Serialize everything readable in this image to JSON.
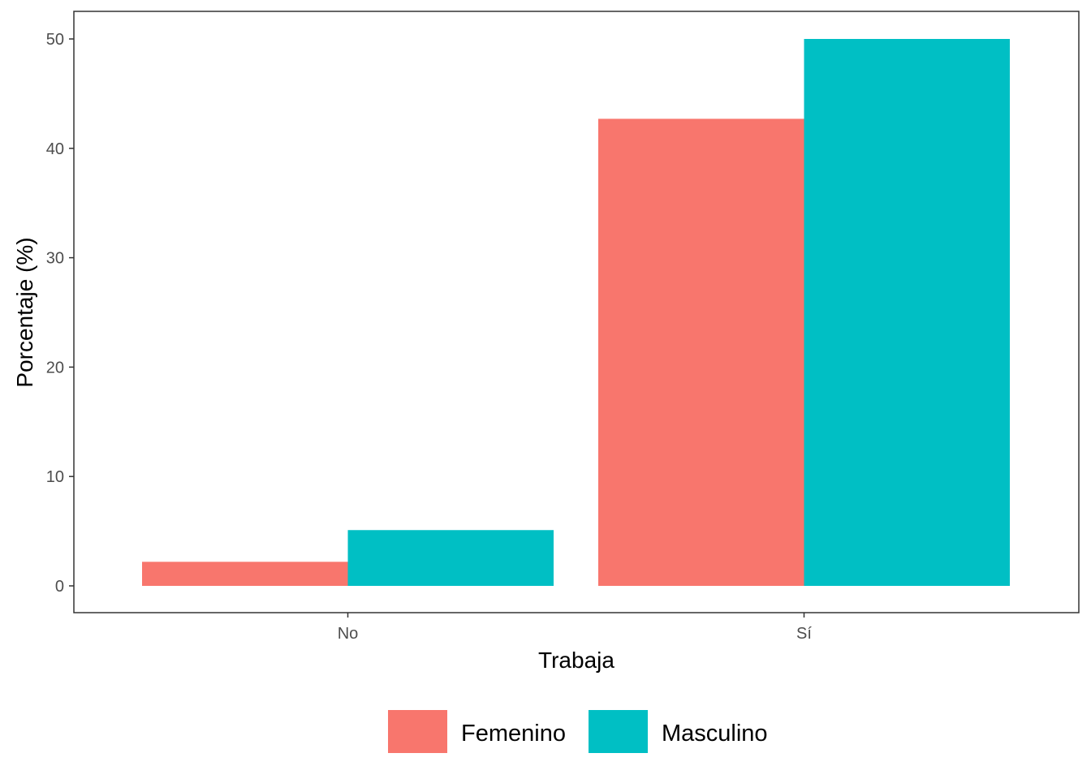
{
  "chart_data": {
    "type": "bar",
    "categories": [
      "No",
      "Sí"
    ],
    "series": [
      {
        "name": "Femenino",
        "color": "#F8766D",
        "values": [
          2.2,
          42.7
        ]
      },
      {
        "name": "Masculino",
        "color": "#00BFC4",
        "values": [
          5.1,
          50.0
        ]
      }
    ],
    "xlabel": "Trabaja",
    "ylabel": "Porcentaje (%)",
    "ylim": [
      0,
      52.5
    ],
    "yticks": [
      0,
      10,
      20,
      30,
      40,
      50
    ],
    "grid": false,
    "legend": "bottom"
  }
}
